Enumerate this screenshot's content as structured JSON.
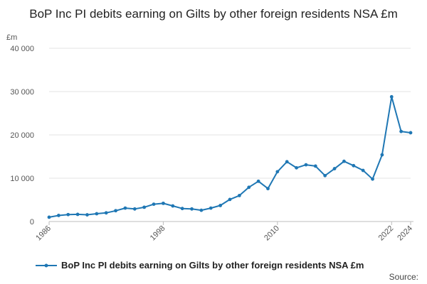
{
  "chart_data": {
    "type": "line",
    "title": "BoP Inc PI debits earning on Gilts by other foreign residents NSA £m",
    "ylabel": "£m",
    "xlabel": "",
    "ylim": [
      0,
      40000
    ],
    "yticks": [
      0,
      10000,
      20000,
      30000,
      40000
    ],
    "ytick_labels": [
      "0",
      "10 000",
      "20 000",
      "30 000",
      "40 000"
    ],
    "xlim": [
      1986,
      2024
    ],
    "xticks": [
      1986,
      1998,
      2010,
      2022,
      2024
    ],
    "xtick_labels": [
      "1986",
      "1998",
      "2010",
      "2022",
      "2024"
    ],
    "grid": true,
    "legend": "bottom-left",
    "series": [
      {
        "name": "BoP Inc PI debits earning on Gilts by other foreign residents NSA £m",
        "color": "#1f77b4",
        "x": [
          1986,
          1987,
          1988,
          1989,
          1990,
          1991,
          1992,
          1993,
          1994,
          1995,
          1996,
          1997,
          1998,
          1999,
          2000,
          2001,
          2002,
          2003,
          2004,
          2005,
          2006,
          2007,
          2008,
          2009,
          2010,
          2011,
          2012,
          2013,
          2014,
          2015,
          2016,
          2017,
          2018,
          2019,
          2020,
          2021,
          2022,
          2023,
          2024
        ],
        "values": [
          1000,
          1400,
          1600,
          1650,
          1550,
          1800,
          2000,
          2500,
          3100,
          2900,
          3300,
          4000,
          4200,
          3600,
          3000,
          2900,
          2600,
          3100,
          3700,
          5100,
          6000,
          7900,
          9300,
          7600,
          11500,
          13800,
          12400,
          13100,
          12800,
          10600,
          12200,
          13900,
          12900,
          11800,
          9800,
          15400,
          28800,
          20800,
          20500
        ]
      }
    ]
  },
  "source_label": "Source:"
}
